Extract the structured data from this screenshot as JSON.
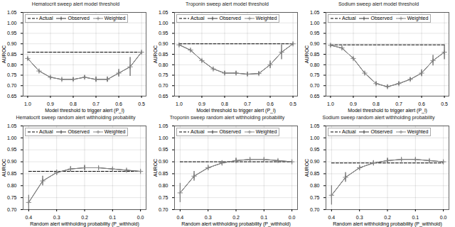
{
  "chart_data": [
    {
      "type": "line",
      "title": "Hematocrit sweep alert model threshold",
      "xlabel": "Model threshold to trigger alert (P_l)",
      "ylabel": "AUROC",
      "x": [
        1.0,
        0.95,
        0.9,
        0.85,
        0.8,
        0.75,
        0.7,
        0.65,
        0.6,
        0.55,
        0.5
      ],
      "xlim": [
        1.02,
        0.48
      ],
      "xticks": [
        {
          "value": 1.0,
          "label": "1.0"
        },
        0.9,
        0.8,
        0.7,
        0.6,
        0.5
      ],
      "ylim": [
        0.65,
        1.05
      ],
      "yticks": [
        0.65,
        {
          "value": 0.7,
          "label": "0.70"
        },
        0.75,
        {
          "value": 0.8,
          "label": "0.80"
        },
        0.85,
        {
          "value": 0.9,
          "label": "0.90"
        },
        0.95,
        {
          "value": 1.0,
          "label": "1.00"
        },
        1.05
      ],
      "grid": true,
      "legend": "upper left",
      "series": [
        {
          "name": "Actual",
          "color": "#000000",
          "line_style": "dashed",
          "values": [
            0.86,
            0.86,
            0.86,
            0.86,
            0.86,
            0.86,
            0.86,
            0.86,
            0.86,
            0.86,
            0.86
          ]
        },
        {
          "name": "Observed",
          "color": "#333333",
          "line_style": "solid",
          "marker": "vline",
          "values": [
            0.83,
            0.77,
            0.74,
            0.73,
            0.73,
            0.74,
            0.73,
            0.73,
            0.76,
            0.79,
            0.86
          ],
          "errors": [
            0.0,
            0.0,
            0.0,
            0.0,
            0.008,
            0.008,
            0.012,
            0.012,
            0.018,
            0.045,
            0.0
          ]
        },
        {
          "name": "Weighted",
          "color": "#888888",
          "line_style": "solid",
          "marker": "plus",
          "values": [
            0.83,
            0.77,
            0.74,
            0.73,
            0.73,
            0.74,
            0.73,
            0.73,
            0.76,
            0.79,
            0.86
          ],
          "errors": [
            0.0,
            0.0,
            0.0,
            0.0,
            0.008,
            0.008,
            0.012,
            0.012,
            0.018,
            0.045,
            0.0
          ]
        }
      ]
    },
    {
      "type": "line",
      "title": "Troponin sweep alert model threshold",
      "xlabel": "Model threshold to trigger alert (P_l)",
      "ylabel": "AUROC",
      "x": [
        1.0,
        0.95,
        0.9,
        0.85,
        0.8,
        0.75,
        0.7,
        0.65,
        0.6,
        0.55,
        0.5
      ],
      "xlim": [
        1.02,
        0.48
      ],
      "xticks": [
        {
          "value": 1.0,
          "label": "1.0"
        },
        0.9,
        0.8,
        0.7,
        0.6,
        0.5
      ],
      "ylim": [
        0.65,
        1.05
      ],
      "yticks": [
        0.65,
        {
          "value": 0.7,
          "label": "0.70"
        },
        0.75,
        {
          "value": 0.8,
          "label": "0.80"
        },
        0.85,
        {
          "value": 0.9,
          "label": "0.90"
        },
        0.95,
        {
          "value": 1.0,
          "label": "1.00"
        },
        1.05
      ],
      "grid": true,
      "legend": "upper left",
      "series": [
        {
          "name": "Actual",
          "color": "#000000",
          "line_style": "dashed",
          "values": [
            0.9,
            0.9,
            0.9,
            0.9,
            0.9,
            0.9,
            0.9,
            0.9,
            0.9,
            0.9,
            0.9
          ]
        },
        {
          "name": "Observed",
          "color": "#333333",
          "line_style": "solid",
          "marker": "vline",
          "values": [
            0.895,
            0.87,
            0.82,
            0.78,
            0.76,
            0.76,
            0.755,
            0.758,
            0.8,
            0.86,
            0.9
          ],
          "errors": [
            0.0,
            0.0,
            0.0,
            0.0,
            0.008,
            0.008,
            0.008,
            0.008,
            0.018,
            0.035,
            0.0
          ]
        },
        {
          "name": "Weighted",
          "color": "#888888",
          "line_style": "solid",
          "marker": "plus",
          "values": [
            0.895,
            0.87,
            0.82,
            0.78,
            0.76,
            0.76,
            0.755,
            0.758,
            0.8,
            0.86,
            0.9
          ],
          "errors": [
            0.0,
            0.0,
            0.0,
            0.0,
            0.008,
            0.008,
            0.008,
            0.008,
            0.018,
            0.035,
            0.0
          ]
        }
      ]
    },
    {
      "type": "line",
      "title": "Sodium sweep alert model threshold",
      "xlabel": "Model threshold to trigger alert (P_l)",
      "ylabel": "AUROC",
      "x": [
        1.0,
        0.95,
        0.9,
        0.85,
        0.8,
        0.75,
        0.7,
        0.65,
        0.6,
        0.55,
        0.5
      ],
      "xlim": [
        1.02,
        0.48
      ],
      "xticks": [
        {
          "value": 1.0,
          "label": "1.0"
        },
        0.9,
        0.8,
        0.7,
        0.6,
        0.5
      ],
      "ylim": [
        0.65,
        1.05
      ],
      "yticks": [
        0.65,
        {
          "value": 0.7,
          "label": "0.70"
        },
        0.75,
        {
          "value": 0.8,
          "label": "0.80"
        },
        0.85,
        {
          "value": 0.9,
          "label": "0.90"
        },
        0.95,
        {
          "value": 1.0,
          "label": "1.00"
        },
        1.05
      ],
      "grid": true,
      "legend": "upper left",
      "series": [
        {
          "name": "Actual",
          "color": "#000000",
          "line_style": "dashed",
          "values": [
            0.895,
            0.895,
            0.895,
            0.895,
            0.895,
            0.895,
            0.895,
            0.895,
            0.895,
            0.895,
            0.895
          ]
        },
        {
          "name": "Observed",
          "color": "#333333",
          "line_style": "solid",
          "marker": "vline",
          "values": [
            0.893,
            0.88,
            0.83,
            0.76,
            0.71,
            0.695,
            0.71,
            0.73,
            0.76,
            0.82,
            0.86
          ],
          "errors": [
            0.0,
            0.0,
            0.0,
            0.0,
            0.008,
            0.008,
            0.008,
            0.008,
            0.016,
            0.025,
            0.035
          ]
        },
        {
          "name": "Weighted",
          "color": "#888888",
          "line_style": "solid",
          "marker": "plus",
          "values": [
            0.893,
            0.88,
            0.83,
            0.76,
            0.71,
            0.695,
            0.71,
            0.73,
            0.76,
            0.82,
            0.86
          ],
          "errors": [
            0.0,
            0.0,
            0.0,
            0.0,
            0.008,
            0.008,
            0.008,
            0.008,
            0.016,
            0.025,
            0.035
          ]
        }
      ]
    },
    {
      "type": "line",
      "title": "Hematocrit sweep random alert withholding probability",
      "xlabel": "Random alert withholding probability (P_withhold)",
      "ylabel": "AUROC",
      "x": [
        0.4,
        0.35,
        0.3,
        0.25,
        0.2,
        0.15,
        0.1,
        0.05,
        0.0
      ],
      "xlim": [
        0.42,
        -0.02
      ],
      "xticks": [
        0.4,
        0.3,
        0.2,
        0.1,
        {
          "value": 0.0,
          "label": "0.0"
        }
      ],
      "ylim": [
        0.7,
        1.05
      ],
      "yticks": [
        {
          "value": 0.7,
          "label": "0.70"
        },
        0.75,
        {
          "value": 0.8,
          "label": "0.80"
        },
        0.85,
        {
          "value": 0.9,
          "label": "0.90"
        },
        0.95,
        {
          "value": 1.0,
          "label": "1.00"
        },
        1.05
      ],
      "grid": true,
      "legend": "upper left",
      "series": [
        {
          "name": "Actual",
          "color": "#000000",
          "line_style": "dashed",
          "values": [
            0.86,
            0.86,
            0.86,
            0.86,
            0.86,
            0.86,
            0.86,
            0.86,
            0.86
          ]
        },
        {
          "name": "Observed",
          "color": "#333333",
          "line_style": "solid",
          "marker": "vline",
          "values": [
            0.73,
            0.82,
            0.855,
            0.87,
            0.875,
            0.875,
            0.87,
            0.865,
            0.86
          ],
          "errors": [
            0.03,
            0.02,
            0.01,
            0.01,
            0.01,
            0.0,
            0.0,
            0.0,
            0.0
          ]
        },
        {
          "name": "Weighted",
          "color": "#888888",
          "line_style": "solid",
          "marker": "plus",
          "values": [
            0.73,
            0.82,
            0.855,
            0.87,
            0.875,
            0.875,
            0.87,
            0.865,
            0.86
          ],
          "errors": [
            0.03,
            0.02,
            0.01,
            0.01,
            0.01,
            0.0,
            0.0,
            0.0,
            0.0
          ]
        }
      ]
    },
    {
      "type": "line",
      "title": "Troponin sweep random alert withholding probability",
      "xlabel": "Random alert withholding probability (P_withhold)",
      "ylabel": "AUROC",
      "x": [
        0.4,
        0.35,
        0.3,
        0.25,
        0.2,
        0.15,
        0.1,
        0.05,
        0.0
      ],
      "xlim": [
        0.42,
        -0.02
      ],
      "xticks": [
        0.4,
        0.3,
        0.2,
        0.1,
        {
          "value": 0.0,
          "label": "0.0"
        }
      ],
      "ylim": [
        0.7,
        1.05
      ],
      "yticks": [
        {
          "value": 0.7,
          "label": "0.70"
        },
        0.75,
        {
          "value": 0.8,
          "label": "0.80"
        },
        0.85,
        {
          "value": 0.9,
          "label": "0.90"
        },
        0.95,
        {
          "value": 1.0,
          "label": "1.00"
        },
        1.05
      ],
      "grid": true,
      "legend": "upper left",
      "series": [
        {
          "name": "Actual",
          "color": "#000000",
          "line_style": "dashed",
          "values": [
            0.9,
            0.9,
            0.9,
            0.9,
            0.9,
            0.9,
            0.9,
            0.9,
            0.9
          ]
        },
        {
          "name": "Observed",
          "color": "#333333",
          "line_style": "solid",
          "marker": "vline",
          "values": [
            0.77,
            0.84,
            0.875,
            0.895,
            0.905,
            0.91,
            0.91,
            0.905,
            0.9
          ],
          "errors": [
            0.04,
            0.02,
            0.01,
            0.01,
            0.01,
            0.0,
            0.0,
            0.0,
            0.0
          ]
        },
        {
          "name": "Weighted",
          "color": "#888888",
          "line_style": "solid",
          "marker": "plus",
          "values": [
            0.77,
            0.84,
            0.875,
            0.895,
            0.905,
            0.91,
            0.91,
            0.905,
            0.9
          ],
          "errors": [
            0.04,
            0.02,
            0.01,
            0.01,
            0.01,
            0.0,
            0.0,
            0.0,
            0.0
          ]
        }
      ]
    },
    {
      "type": "line",
      "title": "Sodium sweep random alert withholding probability",
      "xlabel": "Random alert withholding probability (P_withhold)",
      "ylabel": "AUROC",
      "x": [
        0.4,
        0.35,
        0.3,
        0.25,
        0.2,
        0.15,
        0.1,
        0.05,
        0.0
      ],
      "xlim": [
        0.42,
        -0.02
      ],
      "xticks": [
        0.4,
        0.3,
        0.2,
        0.1,
        {
          "value": 0.0,
          "label": "0.0"
        }
      ],
      "ylim": [
        0.7,
        1.05
      ],
      "yticks": [
        {
          "value": 0.7,
          "label": "0.70"
        },
        0.75,
        {
          "value": 0.8,
          "label": "0.80"
        },
        0.85,
        {
          "value": 0.9,
          "label": "0.90"
        },
        0.95,
        {
          "value": 1.0,
          "label": "1.00"
        },
        1.05
      ],
      "grid": true,
      "legend": "upper left",
      "series": [
        {
          "name": "Actual",
          "color": "#000000",
          "line_style": "dashed",
          "values": [
            0.895,
            0.895,
            0.895,
            0.895,
            0.895,
            0.895,
            0.895,
            0.895,
            0.895
          ]
        },
        {
          "name": "Observed",
          "color": "#333333",
          "line_style": "solid",
          "marker": "vline",
          "values": [
            0.76,
            0.835,
            0.875,
            0.895,
            0.905,
            0.91,
            0.91,
            0.905,
            0.9
          ],
          "errors": [
            0.04,
            0.02,
            0.01,
            0.01,
            0.01,
            0.0,
            0.0,
            0.0,
            0.0
          ]
        },
        {
          "name": "Weighted",
          "color": "#888888",
          "line_style": "solid",
          "marker": "plus",
          "values": [
            0.76,
            0.835,
            0.875,
            0.895,
            0.905,
            0.91,
            0.91,
            0.905,
            0.9
          ],
          "errors": [
            0.04,
            0.02,
            0.01,
            0.01,
            0.01,
            0.0,
            0.0,
            0.0,
            0.0
          ]
        }
      ]
    }
  ]
}
